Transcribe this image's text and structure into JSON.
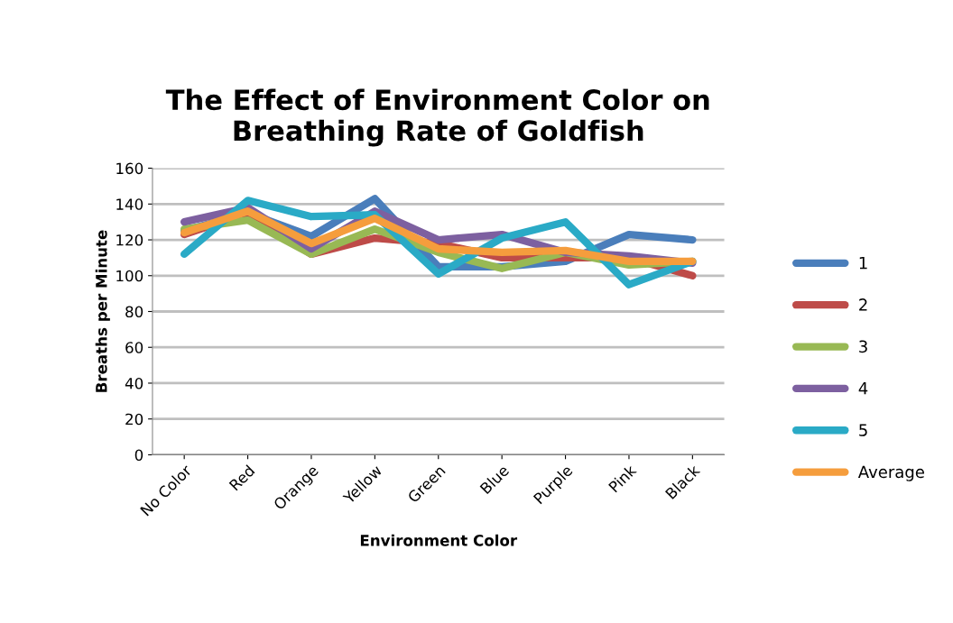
{
  "chart_data": {
    "type": "line",
    "title": "The Effect of Environment Color on\nBreathing Rate of Goldfish",
    "xlabel": "Environment Color",
    "ylabel": "Breaths per Minute",
    "categories": [
      "No Color",
      "Red",
      "Orange",
      "Yellow",
      "Green",
      "Blue",
      "Purple",
      "Pink",
      "Black"
    ],
    "series": [
      {
        "name": "1",
        "color": "#4a7ebb",
        "values": [
          125,
          135,
          122,
          143,
          105,
          105,
          108,
          123,
          120
        ]
      },
      {
        "name": "2",
        "color": "#be4b48",
        "values": [
          123,
          135,
          112,
          121,
          118,
          110,
          110,
          110,
          100
        ]
      },
      {
        "name": "3",
        "color": "#98b954",
        "values": [
          126,
          131,
          112,
          126,
          113,
          104,
          113,
          106,
          108
        ]
      },
      {
        "name": "4",
        "color": "#7d60a0",
        "values": [
          130,
          138,
          115,
          136,
          120,
          123,
          113,
          111,
          107
        ]
      },
      {
        "name": "5",
        "color": "#2aaac6",
        "values": [
          112,
          142,
          133,
          134,
          101,
          121,
          130,
          95,
          108
        ]
      },
      {
        "name": "Average",
        "color": "#f59d3d",
        "values": [
          124,
          136,
          118,
          132,
          115,
          113,
          114,
          108,
          108
        ]
      }
    ],
    "ylim": [
      0,
      160
    ],
    "yticks": [
      0,
      20,
      40,
      60,
      80,
      100,
      120,
      140,
      160
    ],
    "grid": "y",
    "legend": "right",
    "marker": "none",
    "line_style": "solid"
  }
}
